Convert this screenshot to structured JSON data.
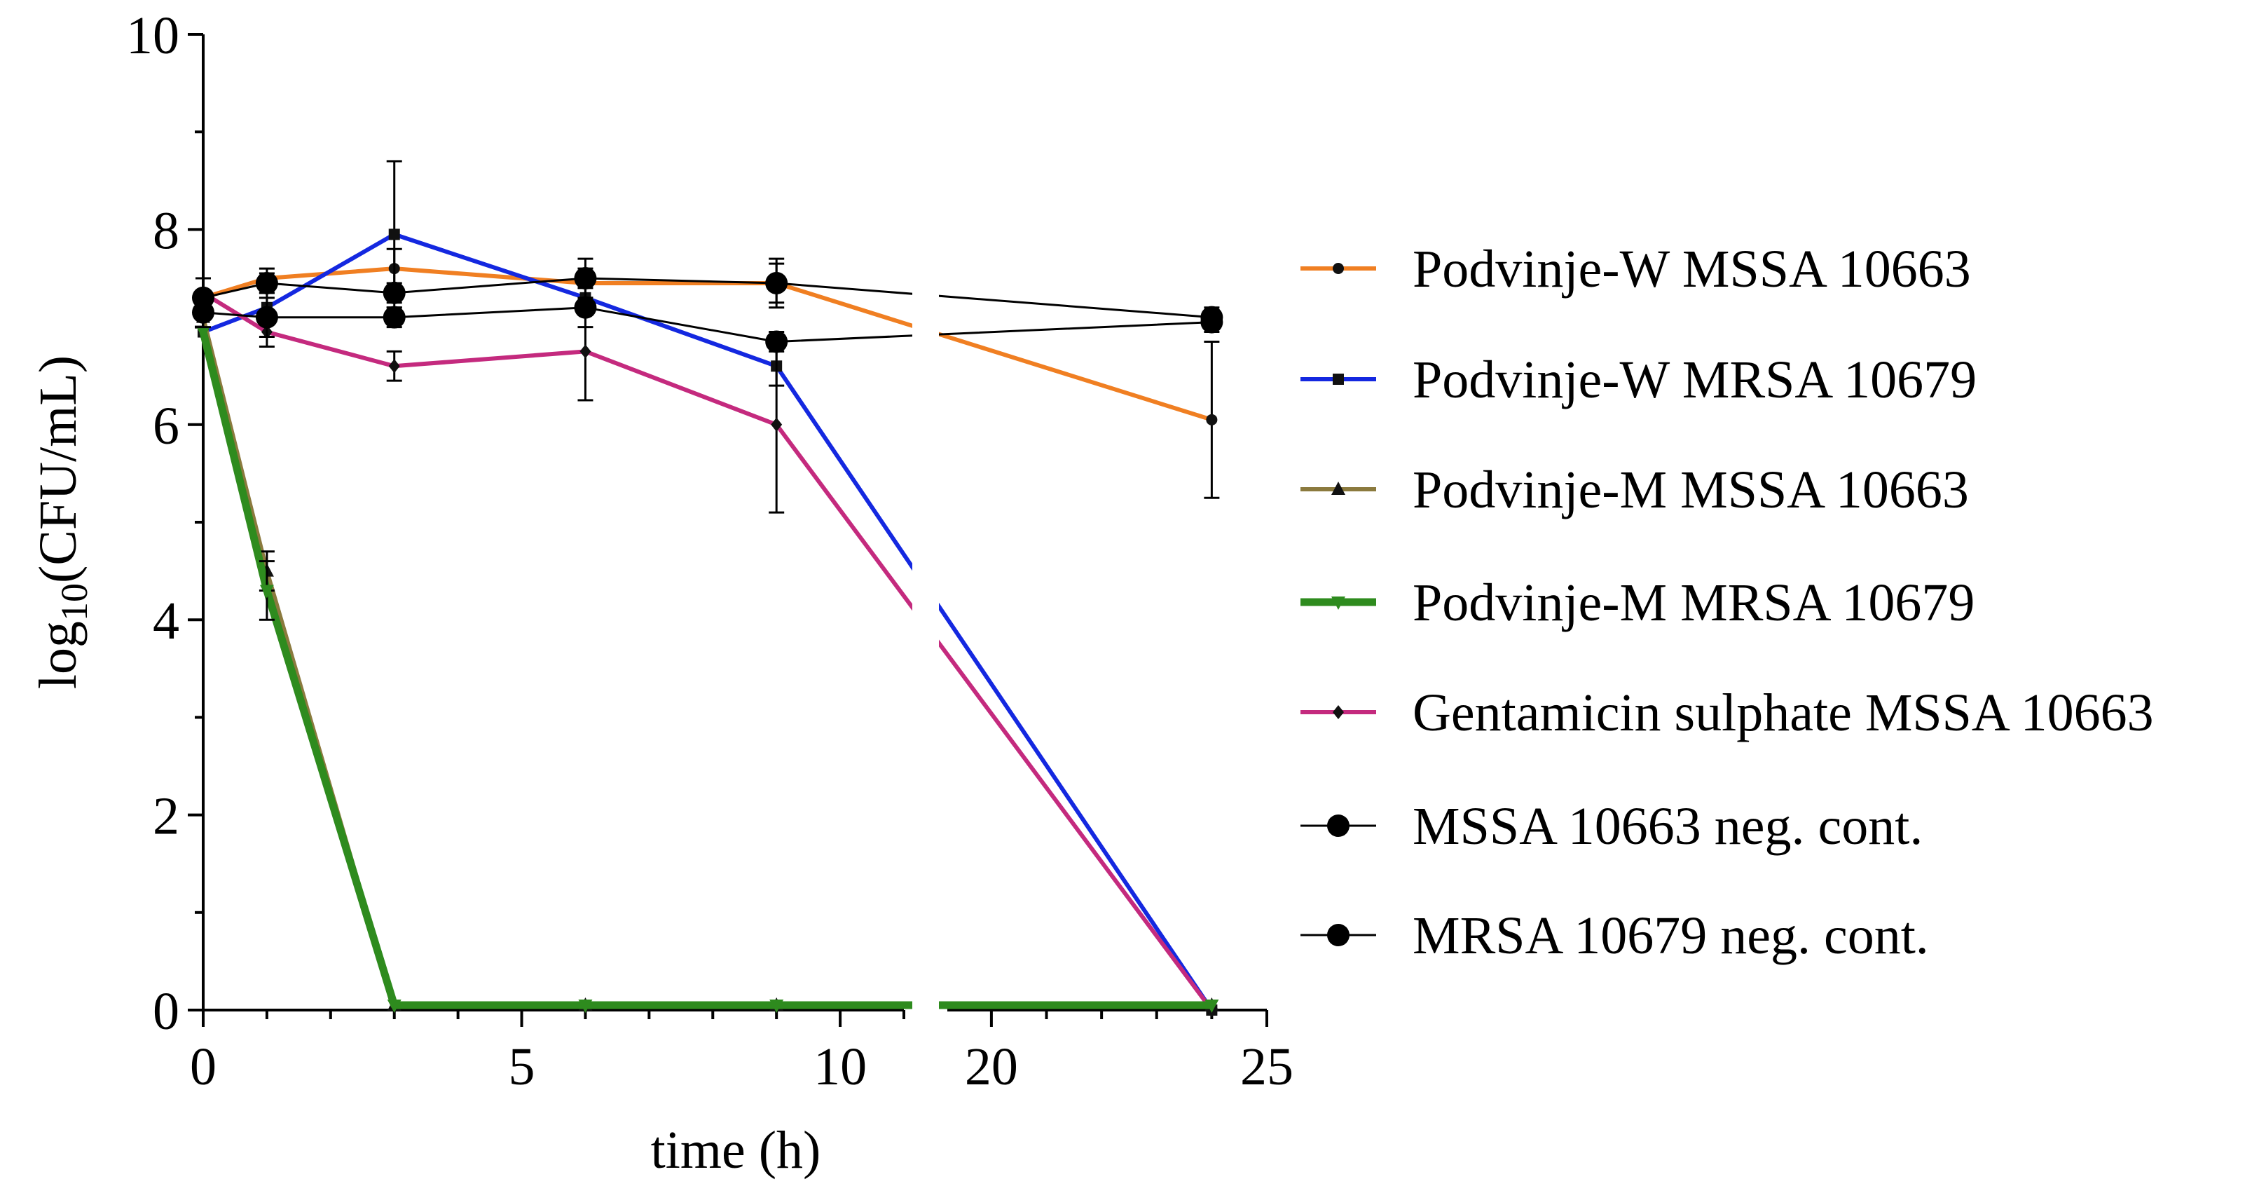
{
  "chart_data": {
    "type": "line",
    "title": "",
    "xlabel": "time (h)",
    "ylabel": "log10(CFU/mL)",
    "ylabel_parts": {
      "pre": "log",
      "sub": "10",
      "post": "(CFU/mL)"
    },
    "ylim": [
      0,
      10
    ],
    "yticks": [
      0,
      2,
      4,
      6,
      8,
      10
    ],
    "x_segments": [
      {
        "range": [
          0,
          11
        ],
        "ticks": [
          0,
          5,
          10
        ]
      },
      {
        "range": [
          19.2,
          25
        ],
        "ticks": [
          20,
          25
        ]
      }
    ],
    "legend_position": "right",
    "grid": false,
    "series": [
      {
        "name": "Podvinje-W MSSA 10663",
        "color": "#F07F22",
        "marker": "circle-small",
        "x": [
          0,
          1,
          3,
          6,
          9,
          24
        ],
        "y": [
          7.3,
          7.5,
          7.6,
          7.45,
          7.45,
          6.05
        ],
        "err": [
          0,
          0.1,
          0.2,
          0.15,
          0.2,
          0.8
        ]
      },
      {
        "name": "Podvinje-W MRSA 10679",
        "color": "#1428E0",
        "marker": "square",
        "x": [
          0,
          1,
          3,
          6,
          9,
          24
        ],
        "y": [
          6.95,
          7.2,
          7.95,
          7.3,
          6.6,
          0
        ],
        "err": [
          0,
          0.15,
          0.75,
          0.15,
          0.2,
          0
        ]
      },
      {
        "name": "Podvinje-M MSSA 10663",
        "color": "#8B7A3E",
        "marker": "triangle-up",
        "x": [
          0,
          1,
          3,
          6,
          9,
          24
        ],
        "y": [
          7.1,
          4.5,
          0.05,
          0.05,
          0.05,
          0.05
        ],
        "err": [
          0,
          0.2,
          0,
          0,
          0,
          0
        ]
      },
      {
        "name": "Podvinje-M MRSA 10679",
        "color": "#2E8B1E",
        "marker": "triangle-down",
        "x": [
          0,
          1,
          3,
          6,
          9,
          24
        ],
        "y": [
          6.95,
          4.3,
          0.05,
          0.05,
          0.05,
          0.05
        ],
        "err": [
          0,
          0.3,
          0,
          0,
          0,
          0
        ]
      },
      {
        "name": "Gentamicin sulphate MSSA 10663",
        "color": "#C42A7E",
        "marker": "diamond",
        "x": [
          0,
          1,
          3,
          6,
          9,
          24
        ],
        "y": [
          7.35,
          6.95,
          6.6,
          6.75,
          6.0,
          0
        ],
        "err": [
          0,
          0.15,
          0.15,
          0.5,
          0.9,
          0
        ]
      },
      {
        "name": "MSSA 10663 neg. cont.",
        "color": "#000000",
        "marker": "circle",
        "x": [
          0,
          1,
          3,
          6,
          9,
          24
        ],
        "y": [
          7.3,
          7.45,
          7.35,
          7.5,
          7.45,
          7.1
        ],
        "err": [
          0.2,
          0.1,
          0.1,
          0.2,
          0.25,
          0.1
        ]
      },
      {
        "name": "MRSA 10679 neg. cont.",
        "color": "#000000",
        "marker": "circle",
        "x": [
          0,
          1,
          3,
          6,
          9,
          24
        ],
        "y": [
          7.15,
          7.1,
          7.1,
          7.2,
          6.85,
          7.05
        ],
        "err": [
          0.15,
          0.2,
          0.1,
          0.2,
          0.1,
          0.1
        ]
      }
    ]
  }
}
